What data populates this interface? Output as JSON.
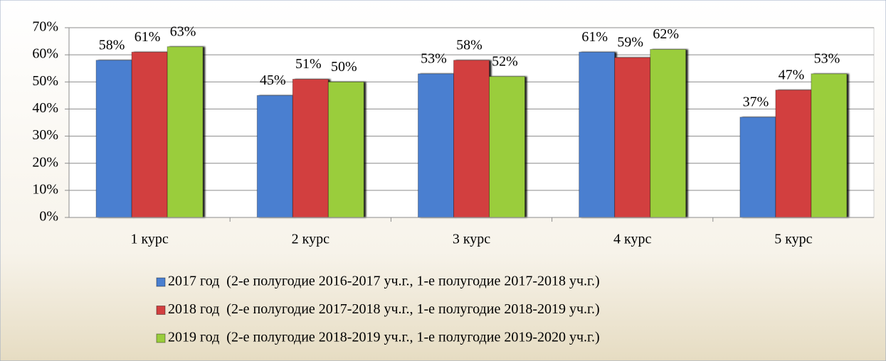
{
  "chart_data": {
    "type": "bar",
    "categories": [
      "1 курс",
      "2 курс",
      "3 курс",
      "4 курс",
      "5 курс"
    ],
    "series": [
      {
        "name": "2017 год  (2-е полугодие 2016-2017 уч.г., 1-е полугодие 2017-2018 уч.г.)",
        "color": "#4a7fd0",
        "values": [
          58,
          45,
          53,
          61,
          37
        ],
        "value_labels": [
          "58%",
          "45%",
          "53%",
          "61%",
          "37%"
        ]
      },
      {
        "name": "2018 год  (2-е полугодие 2017-2018 уч.г., 1-е полугодие 2018-2019 уч.г.)",
        "color": "#d23f3f",
        "values": [
          61,
          51,
          58,
          59,
          47
        ],
        "value_labels": [
          "61%",
          "51%",
          "58%",
          "59%",
          "47%"
        ]
      },
      {
        "name": "2019 год  (2-е полугодие 2018-2019 уч.г., 1-е полугодие 2019-2020 уч.г.)",
        "color": "#9acd3c",
        "values": [
          63,
          50,
          52,
          62,
          53
        ],
        "value_labels": [
          "63%",
          "50%",
          "52%",
          "62%",
          "53%"
        ]
      }
    ],
    "ylim": [
      0,
      70
    ],
    "yticks": [
      {
        "value": 0,
        "label": "0%"
      },
      {
        "value": 10,
        "label": "10%"
      },
      {
        "value": 20,
        "label": "20%"
      },
      {
        "value": 30,
        "label": "30%"
      },
      {
        "value": 40,
        "label": "40%"
      },
      {
        "value": 50,
        "label": "50%"
      },
      {
        "value": 60,
        "label": "60%"
      },
      {
        "value": 70,
        "label": "70%"
      }
    ],
    "grid": true,
    "legend": "bottom"
  }
}
